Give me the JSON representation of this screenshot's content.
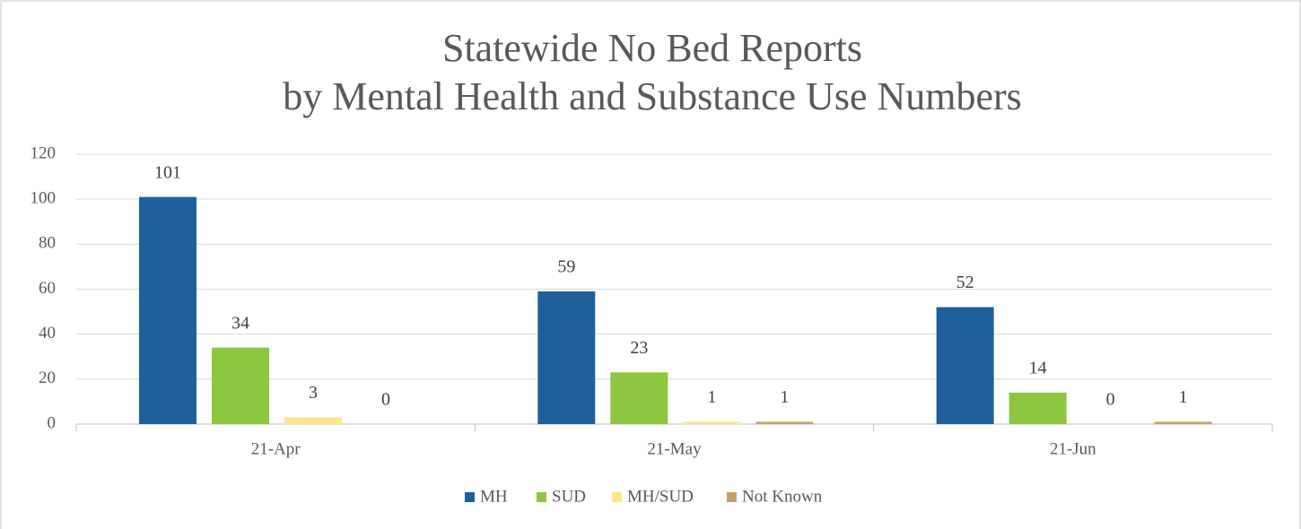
{
  "chart_data": {
    "type": "bar",
    "title": [
      "Statewide No Bed Reports",
      "by Mental Health and Substance Use Numbers"
    ],
    "categories": [
      "21-Apr",
      "21-May",
      "21-Jun"
    ],
    "series": [
      {
        "name": "MH",
        "color": "#1f5f9c",
        "values": [
          101,
          59,
          52
        ]
      },
      {
        "name": "SUD",
        "color": "#8dc63f",
        "values": [
          34,
          23,
          14
        ]
      },
      {
        "name": "MH/SUD",
        "color": "#fde58a",
        "values": [
          3,
          1,
          0
        ]
      },
      {
        "name": "Not Known",
        "color": "#c9a063",
        "values": [
          0,
          1,
          1
        ]
      }
    ],
    "ylim": [
      0,
      120
    ],
    "yticks": [
      0,
      20,
      40,
      60,
      80,
      100,
      120
    ],
    "grid": true,
    "legend": "bottom"
  }
}
